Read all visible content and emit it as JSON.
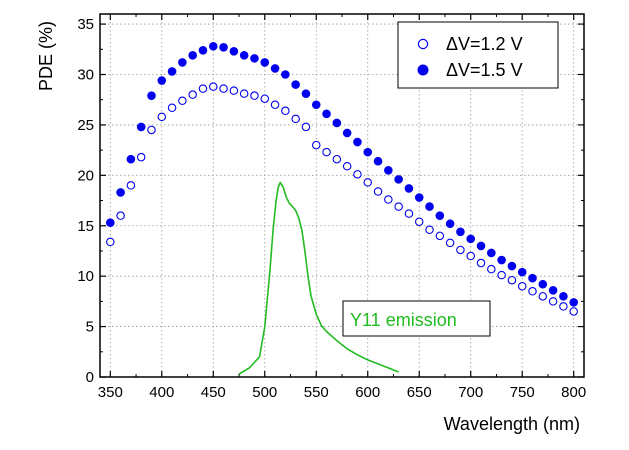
{
  "chart_data": {
    "type": "scatter",
    "title": "",
    "xlabel": "Wavelength (nm)",
    "ylabel": "PDE (%)",
    "xlim": [
      340,
      810
    ],
    "ylim": [
      0,
      36
    ],
    "xticks": [
      350,
      400,
      450,
      500,
      550,
      600,
      650,
      700,
      750,
      800
    ],
    "yticks": [
      0,
      5,
      10,
      15,
      20,
      25,
      30,
      35
    ],
    "x_minor_step": 25,
    "y_minor_step": 2.5,
    "grid": true,
    "legend_position": "top-right",
    "colors": {
      "series": "#0000ee",
      "emission": "#22bb22",
      "axis": "#000000",
      "grid": "#999999"
    },
    "series": [
      {
        "name": "ΔV=1.2 V",
        "marker": "open-circle",
        "x": [
          350,
          360,
          370,
          380,
          390,
          400,
          410,
          420,
          430,
          440,
          450,
          460,
          470,
          480,
          490,
          500,
          510,
          520,
          530,
          540,
          550,
          560,
          570,
          580,
          590,
          600,
          610,
          620,
          630,
          640,
          650,
          660,
          670,
          680,
          690,
          700,
          710,
          720,
          730,
          740,
          750,
          760,
          770,
          780,
          790,
          800
        ],
        "y": [
          13.4,
          16.0,
          19.0,
          21.8,
          24.5,
          25.8,
          26.7,
          27.4,
          28.0,
          28.6,
          28.8,
          28.6,
          28.4,
          28.1,
          27.9,
          27.6,
          27.0,
          26.4,
          25.6,
          24.8,
          23.0,
          22.3,
          21.6,
          20.9,
          20.1,
          19.3,
          18.4,
          17.6,
          16.9,
          16.2,
          15.4,
          14.6,
          14.0,
          13.3,
          12.6,
          12.0,
          11.3,
          10.7,
          10.1,
          9.6,
          9.0,
          8.5,
          8.0,
          7.5,
          7.0,
          6.5
        ]
      },
      {
        "name": "ΔV=1.5 V",
        "marker": "filled-circle",
        "x": [
          350,
          360,
          370,
          380,
          390,
          400,
          410,
          420,
          430,
          440,
          450,
          460,
          470,
          480,
          490,
          500,
          510,
          520,
          530,
          540,
          550,
          560,
          570,
          580,
          590,
          600,
          610,
          620,
          630,
          640,
          650,
          660,
          670,
          680,
          690,
          700,
          710,
          720,
          730,
          740,
          750,
          760,
          770,
          780,
          790,
          800
        ],
        "y": [
          15.3,
          18.3,
          21.6,
          24.8,
          27.9,
          29.4,
          30.3,
          31.2,
          31.9,
          32.4,
          32.8,
          32.7,
          32.3,
          31.9,
          31.6,
          31.2,
          30.6,
          30.0,
          29.0,
          28.1,
          27.0,
          26.1,
          25.2,
          24.2,
          23.3,
          22.3,
          21.4,
          20.5,
          19.6,
          18.7,
          17.8,
          16.9,
          16.0,
          15.2,
          14.4,
          13.7,
          13.0,
          12.3,
          11.6,
          11.0,
          10.4,
          9.8,
          9.2,
          8.6,
          8.0,
          7.4
        ]
      }
    ],
    "emission": {
      "label": "Y11 emission",
      "type": "line",
      "x": [
        475,
        485,
        495,
        500,
        505,
        508,
        511,
        513,
        515,
        518,
        521,
        524,
        527,
        530,
        533,
        536,
        539,
        542,
        545,
        550,
        555,
        560,
        570,
        580,
        590,
        600,
        610,
        620,
        630
      ],
      "y": [
        0.3,
        0.9,
        2.0,
        5.0,
        10.5,
        14.5,
        17.5,
        18.8,
        19.3,
        18.8,
        17.8,
        17.2,
        16.9,
        16.5,
        15.8,
        14.6,
        12.5,
        10.0,
        8.0,
        6.2,
        5.1,
        4.5,
        3.6,
        2.8,
        2.2,
        1.7,
        1.3,
        0.9,
        0.5
      ]
    }
  }
}
